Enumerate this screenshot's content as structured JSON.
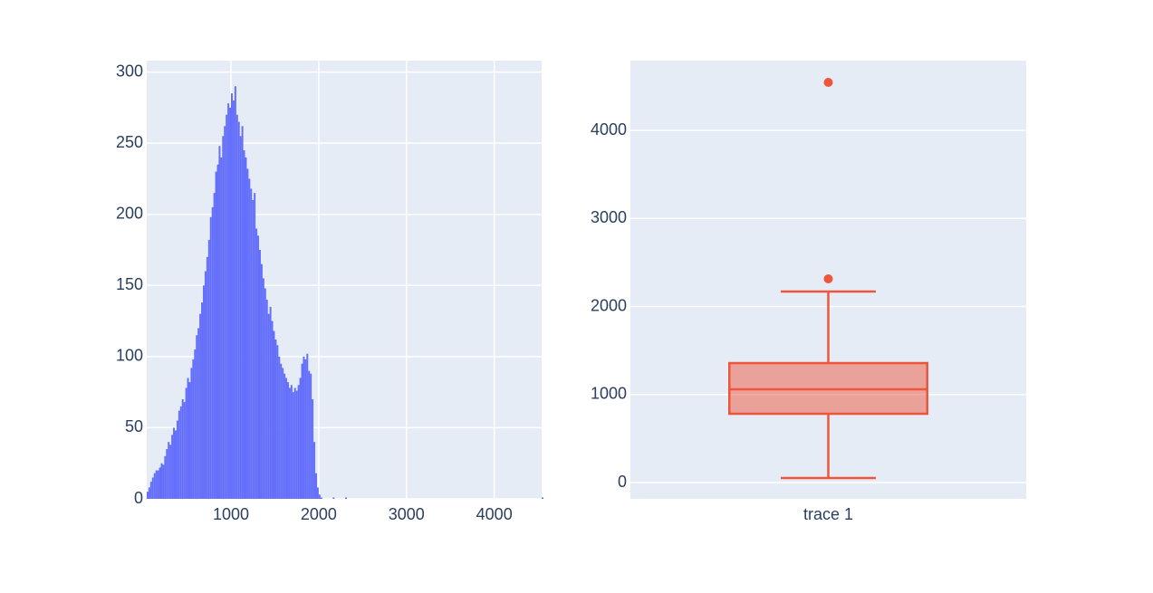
{
  "chart_data": [
    {
      "type": "histogram",
      "bins": [
        40,
        60,
        80,
        100,
        120,
        140,
        160,
        180,
        200,
        220,
        240,
        260,
        280,
        300,
        320,
        340,
        360,
        380,
        400,
        420,
        440,
        460,
        480,
        500,
        520,
        540,
        560,
        580,
        600,
        620,
        640,
        660,
        680,
        700,
        720,
        740,
        760,
        780,
        800,
        820,
        840,
        860,
        880,
        900,
        920,
        940,
        960,
        980,
        1000,
        1020,
        1040,
        1060,
        1080,
        1100,
        1120,
        1140,
        1160,
        1180,
        1200,
        1220,
        1240,
        1260,
        1280,
        1300,
        1320,
        1340,
        1360,
        1380,
        1400,
        1420,
        1440,
        1460,
        1480,
        1500,
        1520,
        1540,
        1560,
        1580,
        1600,
        1620,
        1640,
        1660,
        1680,
        1700,
        1720,
        1740,
        1760,
        1780,
        1800,
        1820,
        1840,
        1860,
        1880,
        1900,
        1920,
        1940,
        1960,
        1980,
        2000,
        2020,
        2040,
        2060,
        2080,
        2100,
        2120,
        2140,
        2160,
        2180,
        2200,
        2220,
        2240,
        2260,
        2280,
        2300,
        2320,
        2340,
        2360,
        2380,
        2400,
        2420,
        2440,
        2460,
        2480,
        2500,
        2520,
        2540,
        2560,
        2580,
        2600,
        2620,
        2640,
        2660,
        2680,
        2700,
        2720,
        2740,
        2760,
        2780,
        2800,
        2820,
        2840,
        2860,
        2880,
        2900,
        2920,
        2940,
        2960,
        2980,
        3000,
        3020,
        3040,
        3060,
        3080,
        3100,
        3120,
        3140,
        3160,
        3180,
        3200,
        3220,
        3240,
        3260,
        3280,
        3300,
        3320,
        3340,
        3360,
        3380,
        3400,
        3420,
        3440,
        3460,
        3480,
        3500,
        3520,
        3540,
        3560,
        3580,
        3600,
        3620,
        3640,
        3660,
        3680,
        3700,
        3720,
        3740,
        3760,
        3780,
        3800,
        3820,
        3840,
        3860,
        3880,
        3900,
        3920,
        3940,
        3960,
        3980,
        4000,
        4020,
        4040,
        4060,
        4080,
        4100,
        4120,
        4140,
        4160,
        4180,
        4200,
        4220,
        4240,
        4260,
        4280,
        4300,
        4320,
        4340,
        4360,
        4380,
        4400,
        4420,
        4440,
        4460,
        4480,
        4500,
        4520,
        4540,
        4560
      ],
      "values": [
        5,
        8,
        12,
        15,
        18,
        20,
        20,
        22,
        25,
        24,
        30,
        35,
        40,
        38,
        45,
        50,
        48,
        55,
        62,
        65,
        70,
        68,
        78,
        85,
        82,
        92,
        98,
        105,
        115,
        120,
        130,
        138,
        150,
        160,
        170,
        182,
        198,
        205,
        215,
        230,
        235,
        248,
        240,
        255,
        262,
        270,
        278,
        275,
        285,
        280,
        290,
        270,
        265,
        255,
        262,
        245,
        240,
        232,
        225,
        218,
        210,
        215,
        190,
        185,
        175,
        165,
        155,
        148,
        140,
        130,
        135,
        125,
        118,
        112,
        108,
        100,
        95,
        92,
        88,
        85,
        82,
        78,
        80,
        75,
        78,
        76,
        80,
        85,
        95,
        100,
        98,
        102,
        90,
        88,
        70,
        40,
        18,
        8,
        3,
        1,
        0,
        0,
        0,
        0,
        0,
        0,
        1,
        0,
        0,
        0,
        0,
        0,
        0,
        1,
        0,
        0,
        0,
        0,
        0,
        0,
        0,
        0,
        0,
        0,
        0,
        0,
        0,
        0,
        0,
        0,
        0,
        0,
        0,
        0,
        0,
        0,
        0,
        0,
        0,
        0,
        0,
        0,
        0,
        0,
        0,
        0,
        0,
        0,
        0,
        0,
        0,
        0,
        0,
        0,
        0,
        0,
        0,
        0,
        0,
        0,
        0,
        0,
        0,
        0,
        0,
        0,
        0,
        0,
        0,
        0,
        0,
        0,
        0,
        0,
        0,
        0,
        0,
        0,
        0,
        0,
        0,
        0,
        0,
        0,
        0,
        0,
        0,
        0,
        0,
        0,
        0,
        0,
        0,
        0,
        0,
        0,
        0,
        0,
        0,
        0,
        0,
        0,
        0,
        0,
        0,
        0,
        0,
        0,
        0,
        0,
        0,
        0,
        0,
        0,
        0,
        0,
        0,
        0,
        0,
        0,
        0,
        0,
        0,
        0,
        0,
        1
      ],
      "color": "#636efa",
      "xlim": [
        40,
        4540
      ],
      "xticks": [
        1000,
        2000,
        3000,
        4000
      ],
      "ylim": [
        0,
        308
      ],
      "yticks": [
        0,
        50,
        100,
        150,
        200,
        250,
        300
      ],
      "grid": true
    },
    {
      "type": "box",
      "categories": [
        "trace 1"
      ],
      "lowerfence": 51,
      "q1": 781,
      "median": 1059,
      "q3": 1357,
      "upperfence": 2170,
      "outliers": [
        2314,
        4545
      ],
      "color": "#ef553b",
      "ylim": [
        -185,
        4792
      ],
      "yticks": [
        0,
        1000,
        2000,
        3000,
        4000
      ],
      "grid": true
    }
  ]
}
